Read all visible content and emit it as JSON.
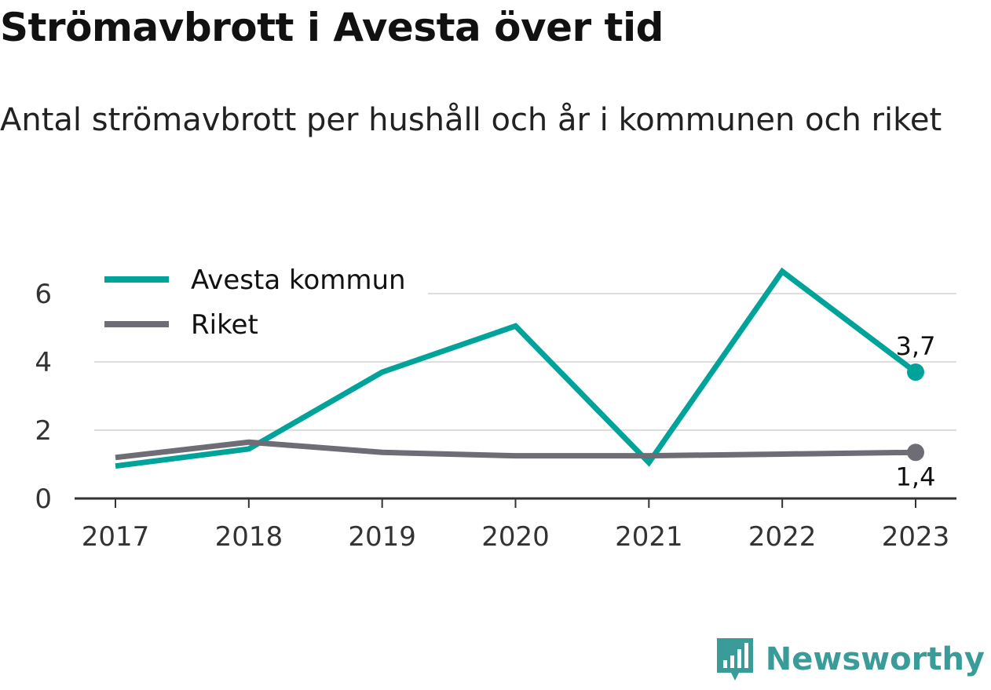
{
  "header": {
    "title": "Strömavbrott i Avesta över tid",
    "subtitle": "Antal strömavbrott per hushåll och år i kommunen och riket"
  },
  "brand": {
    "name": "Newsworthy",
    "color": "#3a9c98"
  },
  "chart_data": {
    "type": "line",
    "title": "Strömavbrott i Avesta över tid",
    "subtitle": "Antal strömavbrott per hushåll och år i kommunen och riket",
    "x": [
      "2017",
      "2018",
      "2019",
      "2020",
      "2021",
      "2022",
      "2023"
    ],
    "ylim": [
      0,
      7
    ],
    "yticks": [
      "0",
      "2",
      "4",
      "6"
    ],
    "ytick_values": [
      0,
      2,
      4,
      6
    ],
    "grid": true,
    "legend": "top-left",
    "series": [
      {
        "name": "Avesta kommun",
        "color": "#00a39a",
        "values": [
          0.95,
          1.45,
          3.7,
          5.05,
          1.05,
          6.65,
          3.7
        ],
        "end_label": "3,7"
      },
      {
        "name": "Riket",
        "color": "#6e6d75",
        "values": [
          1.2,
          1.65,
          1.35,
          1.25,
          1.25,
          1.3,
          1.35
        ],
        "end_label": "1,4"
      }
    ]
  }
}
